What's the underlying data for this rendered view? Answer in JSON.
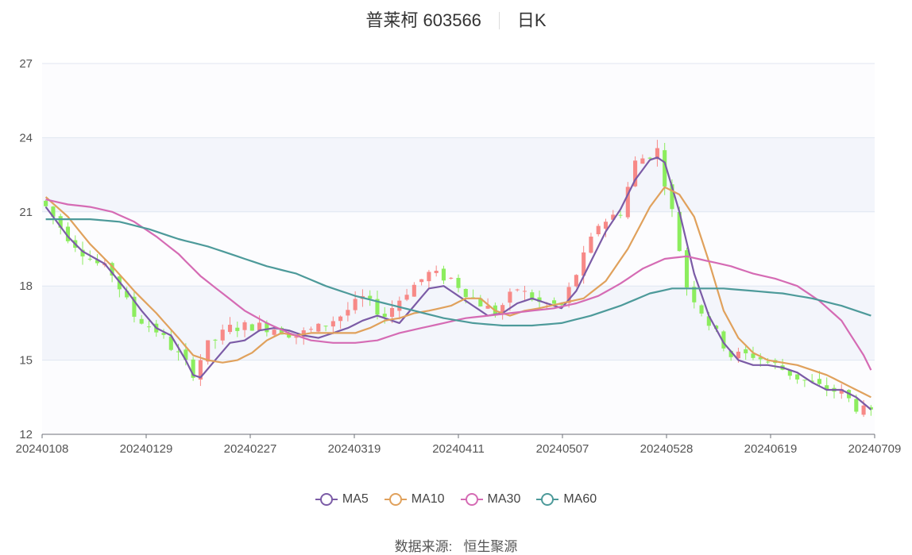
{
  "header": {
    "stock": "普莱柯 603566",
    "period": "日K"
  },
  "source": {
    "label": "数据来源:",
    "value": "恒生聚源"
  },
  "colors": {
    "up": "#f78987",
    "down": "#8ced5e",
    "ma5": "#7b5ba6",
    "ma10": "#e0a15c",
    "ma30": "#d56bb4",
    "ma60": "#4d9a9a",
    "grid": "#e0e6f1",
    "band": "#f3f5fb"
  },
  "chart_data": {
    "type": "candlestick",
    "ylim": [
      12,
      27
    ],
    "yticks": [
      12,
      15,
      18,
      21,
      24,
      27
    ],
    "xtick_labels": [
      "20240108",
      "20240129",
      "20240227",
      "20240319",
      "20240411",
      "20240507",
      "20240528",
      "20240619",
      "20240709"
    ],
    "xtick_index": [
      0,
      14,
      28,
      42,
      56,
      70,
      84,
      98,
      112
    ],
    "n": 113,
    "legend": [
      "MA5",
      "MA10",
      "MA30",
      "MA60"
    ],
    "ma_names": [
      "ma5",
      "ma10",
      "ma30",
      "ma60"
    ],
    "anchors": [
      [
        0,
        21.2
      ],
      [
        3,
        20.0
      ],
      [
        6,
        19.1
      ],
      [
        9,
        18.5
      ],
      [
        12,
        16.8
      ],
      [
        15,
        16.2
      ],
      [
        18,
        15.2
      ],
      [
        20,
        14.5
      ],
      [
        22,
        15.6
      ],
      [
        25,
        16.3
      ],
      [
        28,
        16.4
      ],
      [
        31,
        16.3
      ],
      [
        34,
        16.0
      ],
      [
        37,
        16.3
      ],
      [
        40,
        16.8
      ],
      [
        43,
        17.5
      ],
      [
        46,
        16.8
      ],
      [
        49,
        17.8
      ],
      [
        52,
        18.5
      ],
      [
        55,
        18.3
      ],
      [
        58,
        17.5
      ],
      [
        61,
        16.9
      ],
      [
        64,
        17.9
      ],
      [
        67,
        17.3
      ],
      [
        70,
        17.2
      ],
      [
        72,
        18.5
      ],
      [
        75,
        20.5
      ],
      [
        78,
        21.0
      ],
      [
        80,
        23.0
      ],
      [
        83,
        23.5
      ],
      [
        85,
        21.0
      ],
      [
        87,
        18.0
      ],
      [
        90,
        16.5
      ],
      [
        93,
        15.2
      ],
      [
        96,
        15.2
      ],
      [
        99,
        14.8
      ],
      [
        102,
        14.3
      ],
      [
        105,
        13.9
      ],
      [
        108,
        13.7
      ],
      [
        110,
        13.1
      ],
      [
        112,
        12.8
      ]
    ],
    "ma_anchors": {
      "ma5": [
        [
          0,
          21.2
        ],
        [
          3,
          20.0
        ],
        [
          5,
          19.4
        ],
        [
          8,
          18.9
        ],
        [
          11,
          17.8
        ],
        [
          13,
          17.0
        ],
        [
          15,
          16.3
        ],
        [
          17,
          16.0
        ],
        [
          19,
          15.0
        ],
        [
          20,
          14.4
        ],
        [
          21,
          14.3
        ],
        [
          23,
          15.0
        ],
        [
          25,
          15.7
        ],
        [
          27,
          15.8
        ],
        [
          29,
          16.2
        ],
        [
          31,
          16.3
        ],
        [
          33,
          16.2
        ],
        [
          35,
          16.0
        ],
        [
          37,
          15.9
        ],
        [
          39,
          16.1
        ],
        [
          41,
          16.3
        ],
        [
          43,
          16.6
        ],
        [
          45,
          16.8
        ],
        [
          48,
          16.5
        ],
        [
          50,
          17.2
        ],
        [
          52,
          17.9
        ],
        [
          54,
          18.0
        ],
        [
          56,
          17.6
        ],
        [
          58,
          17.2
        ],
        [
          60,
          16.8
        ],
        [
          62,
          16.9
        ],
        [
          64,
          17.3
        ],
        [
          66,
          17.5
        ],
        [
          68,
          17.3
        ],
        [
          70,
          17.1
        ],
        [
          72,
          17.8
        ],
        [
          74,
          19.0
        ],
        [
          76,
          20.2
        ],
        [
          78,
          21.1
        ],
        [
          80,
          22.3
        ],
        [
          82,
          23.1
        ],
        [
          83,
          23.2
        ],
        [
          84,
          23.0
        ],
        [
          86,
          21.0
        ],
        [
          88,
          18.5
        ],
        [
          90,
          16.8
        ],
        [
          92,
          15.7
        ],
        [
          94,
          15.0
        ],
        [
          96,
          14.8
        ],
        [
          98,
          14.8
        ],
        [
          100,
          14.7
        ],
        [
          102,
          14.5
        ],
        [
          104,
          14.1
        ],
        [
          106,
          13.8
        ],
        [
          108,
          13.8
        ],
        [
          110,
          13.5
        ],
        [
          112,
          13.0
        ]
      ],
      "ma10": [
        [
          0,
          21.6
        ],
        [
          3,
          20.8
        ],
        [
          6,
          19.7
        ],
        [
          9,
          18.8
        ],
        [
          12,
          17.8
        ],
        [
          15,
          16.9
        ],
        [
          18,
          15.9
        ],
        [
          20,
          15.2
        ],
        [
          22,
          15.0
        ],
        [
          24,
          14.9
        ],
        [
          26,
          15.0
        ],
        [
          28,
          15.3
        ],
        [
          30,
          15.8
        ],
        [
          32,
          16.1
        ],
        [
          34,
          16.0
        ],
        [
          36,
          16.1
        ],
        [
          38,
          16.1
        ],
        [
          40,
          16.1
        ],
        [
          42,
          16.1
        ],
        [
          44,
          16.3
        ],
        [
          46,
          16.6
        ],
        [
          48,
          16.7
        ],
        [
          50,
          16.9
        ],
        [
          52,
          17.0
        ],
        [
          55,
          17.2
        ],
        [
          57,
          17.5
        ],
        [
          59,
          17.5
        ],
        [
          61,
          17.0
        ],
        [
          63,
          16.8
        ],
        [
          65,
          17.0
        ],
        [
          67,
          17.1
        ],
        [
          70,
          17.3
        ],
        [
          73,
          17.5
        ],
        [
          76,
          18.2
        ],
        [
          79,
          19.5
        ],
        [
          82,
          21.2
        ],
        [
          84,
          22.0
        ],
        [
          86,
          21.7
        ],
        [
          88,
          20.8
        ],
        [
          90,
          19.0
        ],
        [
          92,
          17.0
        ],
        [
          94,
          15.9
        ],
        [
          96,
          15.3
        ],
        [
          98,
          15.0
        ],
        [
          100,
          14.9
        ],
        [
          102,
          14.8
        ],
        [
          104,
          14.6
        ],
        [
          106,
          14.4
        ],
        [
          108,
          14.1
        ],
        [
          110,
          13.8
        ],
        [
          112,
          13.5
        ]
      ],
      "ma30": [
        [
          0,
          21.5
        ],
        [
          3,
          21.3
        ],
        [
          6,
          21.2
        ],
        [
          9,
          21.0
        ],
        [
          12,
          20.6
        ],
        [
          15,
          20.0
        ],
        [
          18,
          19.3
        ],
        [
          21,
          18.4
        ],
        [
          24,
          17.7
        ],
        [
          27,
          17.0
        ],
        [
          30,
          16.5
        ],
        [
          33,
          16.1
        ],
        [
          36,
          15.8
        ],
        [
          39,
          15.7
        ],
        [
          42,
          15.7
        ],
        [
          45,
          15.8
        ],
        [
          48,
          16.1
        ],
        [
          51,
          16.3
        ],
        [
          54,
          16.5
        ],
        [
          57,
          16.7
        ],
        [
          60,
          16.8
        ],
        [
          63,
          16.9
        ],
        [
          66,
          17.0
        ],
        [
          69,
          17.1
        ],
        [
          72,
          17.3
        ],
        [
          75,
          17.6
        ],
        [
          78,
          18.1
        ],
        [
          81,
          18.7
        ],
        [
          84,
          19.1
        ],
        [
          87,
          19.2
        ],
        [
          90,
          19.0
        ],
        [
          93,
          18.8
        ],
        [
          96,
          18.5
        ],
        [
          99,
          18.3
        ],
        [
          102,
          18.0
        ],
        [
          105,
          17.4
        ],
        [
          108,
          16.6
        ],
        [
          111,
          15.2
        ],
        [
          112,
          14.6
        ]
      ],
      "ma60": [
        [
          0,
          20.7
        ],
        [
          6,
          20.7
        ],
        [
          10,
          20.6
        ],
        [
          14,
          20.3
        ],
        [
          18,
          19.9
        ],
        [
          22,
          19.6
        ],
        [
          26,
          19.2
        ],
        [
          30,
          18.8
        ],
        [
          34,
          18.5
        ],
        [
          38,
          18.0
        ],
        [
          42,
          17.6
        ],
        [
          46,
          17.3
        ],
        [
          50,
          17.0
        ],
        [
          54,
          16.7
        ],
        [
          58,
          16.5
        ],
        [
          62,
          16.4
        ],
        [
          66,
          16.4
        ],
        [
          70,
          16.5
        ],
        [
          74,
          16.8
        ],
        [
          78,
          17.2
        ],
        [
          82,
          17.7
        ],
        [
          85,
          17.9
        ],
        [
          88,
          17.9
        ],
        [
          92,
          17.9
        ],
        [
          96,
          17.8
        ],
        [
          100,
          17.7
        ],
        [
          104,
          17.5
        ],
        [
          108,
          17.2
        ],
        [
          112,
          16.8
        ]
      ]
    }
  }
}
